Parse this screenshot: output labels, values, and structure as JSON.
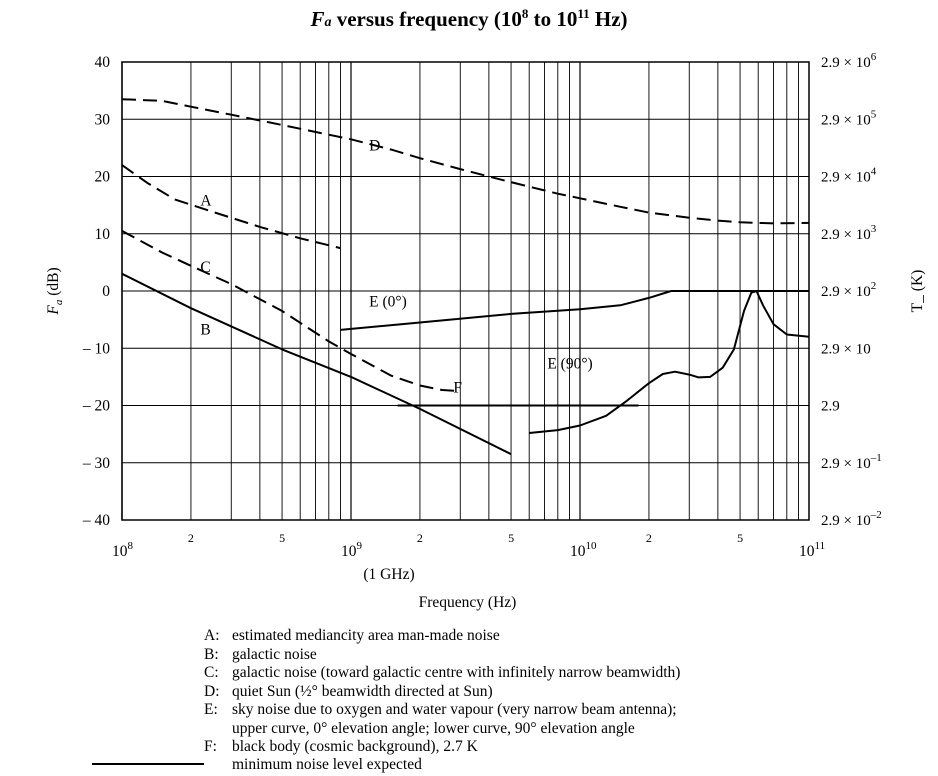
{
  "chart_data": {
    "type": "line",
    "title_prefix": "F",
    "title_subscript": "a",
    "title_rest": " versus frequency (10",
    "title_exp1": "8",
    "title_mid": " to 10",
    "title_exp2": "11",
    "title_end": " Hz)",
    "xlabel": "Frequency (Hz)",
    "ylabel_main": "F",
    "ylabel_sub": "a",
    "ylabel_unit": " (dB)",
    "y2label": "T_ (K)",
    "x_scale": "log",
    "xlim": [
      100000000,
      100000000000
    ],
    "ylim": [
      -40,
      40
    ],
    "y_ticks": [
      40,
      30,
      20,
      10,
      0,
      -10,
      -20,
      -30,
      -40
    ],
    "y_tick_labels": [
      "40",
      "30",
      "20",
      "10",
      "0",
      "– 10",
      "– 20",
      "– 30",
      "– 40"
    ],
    "y2_ticks": [
      {
        "y": 40,
        "mant": "2.9 × 10",
        "exp": "6"
      },
      {
        "y": 30,
        "mant": "2.9 × 10",
        "exp": "5"
      },
      {
        "y": 20,
        "mant": "2.9 × 10",
        "exp": "4"
      },
      {
        "y": 10,
        "mant": "2.9 × 10",
        "exp": "3"
      },
      {
        "y": 0,
        "mant": "2.9 × 10",
        "exp": "2"
      },
      {
        "y": -10,
        "mant": "2.9 × 10",
        "exp": ""
      },
      {
        "y": -20,
        "mant": "2.9",
        "exp": ""
      },
      {
        "y": -30,
        "mant": "2.9 × 10",
        "exp": "–1"
      },
      {
        "y": -40,
        "mant": "2.9 × 10",
        "exp": "–2"
      }
    ],
    "x_major_ticks": [
      {
        "x": 100000000,
        "base": "10",
        "exp": "8"
      },
      {
        "x": 1000000000,
        "base": "10",
        "exp": "9"
      },
      {
        "x": 10000000000,
        "base": "10",
        "exp": "10"
      },
      {
        "x": 100000000000,
        "base": "10",
        "exp": "11"
      }
    ],
    "x_minor_labels": [
      {
        "x": 200000000,
        "label": "2"
      },
      {
        "x": 500000000,
        "label": "5"
      },
      {
        "x": 2000000000,
        "label": "2"
      },
      {
        "x": 5000000000,
        "label": "5"
      },
      {
        "x": 20000000000,
        "label": "2"
      },
      {
        "x": 50000000000,
        "label": "5"
      }
    ],
    "x_extra_label": {
      "x": 1000000000,
      "text": "(1 GHz)"
    },
    "grid": true,
    "series": [
      {
        "name": "D",
        "style": "dashed",
        "label_point": [
          1200000000,
          24.5
        ],
        "points": [
          [
            100000000,
            33.5
          ],
          [
            150000000,
            33.2
          ],
          [
            200000000,
            32.2
          ],
          [
            300000000,
            30.8
          ],
          [
            500000000,
            29
          ],
          [
            800000000,
            27.3
          ],
          [
            1000000000,
            26.5
          ],
          [
            1500000000,
            24.7
          ],
          [
            2000000000,
            23.2
          ],
          [
            3000000000,
            21.3
          ],
          [
            5000000000,
            19
          ],
          [
            8000000000,
            17
          ],
          [
            10000000000,
            16.2
          ],
          [
            15000000000,
            14.7
          ],
          [
            20000000000,
            13.7
          ],
          [
            30000000000,
            12.8
          ],
          [
            40000000000,
            12.3
          ],
          [
            50000000000,
            12
          ],
          [
            70000000000,
            11.8
          ],
          [
            100000000000,
            11.9
          ]
        ]
      },
      {
        "name": "A",
        "style": "dashed",
        "label_point": [
          220000000,
          14.9
        ],
        "points": [
          [
            100000000,
            22
          ],
          [
            130000000,
            18.8
          ],
          [
            170000000,
            16
          ],
          [
            250000000,
            13.8
          ],
          [
            400000000,
            11.2
          ],
          [
            600000000,
            9.2
          ],
          [
            900000000,
            7.5
          ]
        ]
      },
      {
        "name": "C",
        "style": "dashed",
        "label_point": [
          220000000,
          3.3
        ],
        "points": [
          [
            100000000,
            10.5
          ],
          [
            150000000,
            6.7
          ],
          [
            200000000,
            4.4
          ],
          [
            300000000,
            1.2
          ],
          [
            500000000,
            -3.5
          ],
          [
            800000000,
            -8.8
          ],
          [
            1000000000,
            -11
          ],
          [
            1500000000,
            -14.8
          ],
          [
            2000000000,
            -16.5
          ],
          [
            2500000000,
            -17.3
          ],
          [
            3000000000,
            -17.5
          ]
        ]
      },
      {
        "name": "B",
        "style": "solid",
        "label_point": [
          220000000,
          -7.6
        ],
        "points": [
          [
            100000000,
            3
          ],
          [
            200000000,
            -3
          ],
          [
            500000000,
            -10.2
          ],
          [
            1000000000,
            -15
          ],
          [
            2000000000,
            -20.6
          ],
          [
            5000000000,
            -28.5
          ]
        ]
      },
      {
        "name": "E (0°)",
        "style": "solid",
        "label_point": [
          1200000000,
          -2.7
        ],
        "points": [
          [
            900000000,
            -6.8
          ],
          [
            2000000000,
            -5.5
          ],
          [
            5000000000,
            -4
          ],
          [
            10000000000,
            -3.2
          ],
          [
            15000000000,
            -2.5
          ],
          [
            20000000000,
            -1.2
          ],
          [
            25000000000,
            0
          ],
          [
            60000000000,
            0
          ],
          [
            100000000000,
            0
          ]
        ]
      },
      {
        "name": "E (90°)",
        "style": "solid",
        "label_point": [
          7200000000,
          -13.5
        ],
        "points": [
          [
            6000000000,
            -24.8
          ],
          [
            8000000000,
            -24.3
          ],
          [
            10000000000,
            -23.5
          ],
          [
            13000000000,
            -21.8
          ],
          [
            16000000000,
            -19.2
          ],
          [
            20000000000,
            -16.1
          ],
          [
            23000000000,
            -14.5
          ],
          [
            26000000000,
            -14.1
          ],
          [
            30000000000,
            -14.6
          ],
          [
            33000000000,
            -15.1
          ],
          [
            37000000000,
            -15
          ],
          [
            42000000000,
            -13.4
          ],
          [
            47000000000,
            -10.2
          ],
          [
            52000000000,
            -3.5
          ],
          [
            56000000000,
            -0.3
          ],
          [
            59000000000,
            0
          ],
          [
            63000000000,
            -2.5
          ],
          [
            70000000000,
            -5.8
          ],
          [
            80000000000,
            -7.6
          ],
          [
            100000000000,
            -8
          ]
        ]
      },
      {
        "name": "F",
        "style": "solid",
        "label_point": [
          2800000000,
          -17.7
        ],
        "points": [
          [
            1600000000,
            -20
          ],
          [
            18000000000,
            -20
          ]
        ]
      }
    ]
  },
  "legend": [
    {
      "key": "A:",
      "text": "estimated mediancity area man-made noise"
    },
    {
      "key": "B:",
      "text": "galactic noise"
    },
    {
      "key": "C:",
      "text": "galactic noise (toward galactic centre with infinitely narrow beamwidth)"
    },
    {
      "key": "D:",
      "text": "quiet Sun (½° beamwidth directed at Sun)"
    },
    {
      "key": "E:",
      "text": "sky noise due to oxygen and water vapour (very narrow beam antenna);"
    },
    {
      "key": "",
      "text": "upper curve, 0° elevation angle; lower curve, 90° elevation angle"
    },
    {
      "key": "F:",
      "text": "black body (cosmic background), 2.7 K"
    }
  ],
  "min_noise_label": "minimum noise level expected"
}
